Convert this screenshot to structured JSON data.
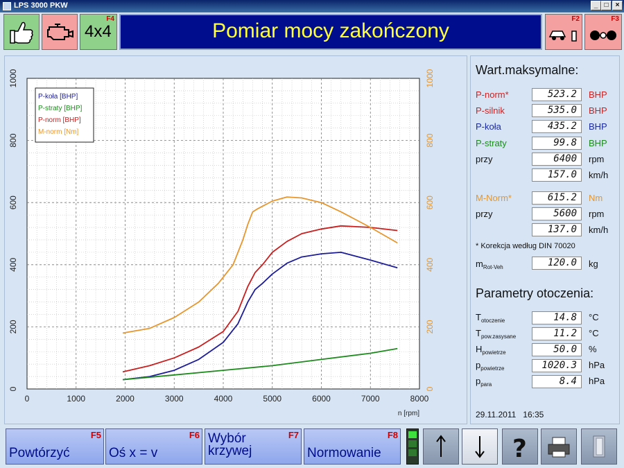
{
  "window": {
    "title": "LPS 3000 PKW"
  },
  "toolbar": {
    "status_title": "Pomiar mocy zakończony",
    "mode_4x4_label": "4x4",
    "mode_4x4_key": "F4",
    "lift_key": "F2",
    "brake_key": "F3"
  },
  "chart_data": {
    "type": "line",
    "xlabel": "n [rpm]",
    "xlim": [
      0,
      8000
    ],
    "ylim_left": [
      0,
      1000
    ],
    "ylim_right": [
      0,
      1000
    ],
    "x_ticks": [
      "0",
      "1000",
      "2000",
      "3000",
      "4000",
      "5000",
      "6000",
      "7000",
      "8000"
    ],
    "y_ticks_left": [
      "0",
      "200",
      "400",
      "600",
      "800",
      "1000"
    ],
    "y_ticks_right": [
      "0",
      "200",
      "400",
      "600",
      "800",
      "1000"
    ],
    "grid": true,
    "legend_position": "top-left",
    "series": [
      {
        "name": "P-koła [BHP]",
        "color": "#1c1c96",
        "axis": "left",
        "x": [
          1950,
          2500,
          3000,
          3500,
          4000,
          4300,
          4500,
          4650,
          4800,
          5000,
          5300,
          5600,
          6000,
          6400,
          7000,
          7550
        ],
        "y": [
          30,
          40,
          60,
          95,
          150,
          210,
          280,
          320,
          340,
          370,
          405,
          425,
          435,
          440,
          415,
          390
        ]
      },
      {
        "name": "P-straty [BHP]",
        "color": "#1e8a1e",
        "axis": "left",
        "x": [
          1950,
          3000,
          4000,
          5000,
          6000,
          7000,
          7550
        ],
        "y": [
          30,
          45,
          60,
          75,
          95,
          115,
          130
        ]
      },
      {
        "name": "P-norm [BHP]",
        "color": "#c81e1e",
        "axis": "left",
        "x": [
          1950,
          2500,
          3000,
          3500,
          4000,
          4300,
          4500,
          4650,
          4800,
          5000,
          5300,
          5600,
          6000,
          6400,
          7000,
          7550
        ],
        "y": [
          55,
          75,
          100,
          135,
          185,
          250,
          330,
          375,
          400,
          440,
          475,
          500,
          515,
          525,
          520,
          510
        ]
      },
      {
        "name": "M-norm [Nm]",
        "color": "#e6962d",
        "axis": "right",
        "x": [
          1950,
          2500,
          3000,
          3500,
          3900,
          4200,
          4400,
          4500,
          4600,
          4700,
          5000,
          5300,
          5600,
          6000,
          6400,
          7000,
          7550
        ],
        "y": [
          180,
          195,
          230,
          280,
          340,
          400,
          480,
          530,
          570,
          580,
          605,
          618,
          615,
          600,
          570,
          520,
          470
        ]
      }
    ]
  },
  "max_values": {
    "heading": "Wart.maksymalne:",
    "rows": [
      {
        "label": "P-norm*",
        "value": "523.2",
        "unit": "BHP",
        "color": "#cc2222"
      },
      {
        "label": "P-silnik",
        "value": "535.0",
        "unit": "BHP",
        "color": "#cc2222"
      },
      {
        "label": "P-koła",
        "value": "435.2",
        "unit": "BHP",
        "color": "#1c2aa0"
      },
      {
        "label": "P-straty",
        "value": "99.8",
        "unit": "BHP",
        "color": "#1e8a1e"
      },
      {
        "label": "przy",
        "value": "6400",
        "unit": "rpm",
        "color": "#111111"
      },
      {
        "label": "",
        "value": "157.0",
        "unit": "km/h",
        "color": "#111111"
      },
      {
        "label": "M-Norm*",
        "value": "615.2",
        "unit": "Nm",
        "color": "#e6962d"
      },
      {
        "label": "przy",
        "value": "5600",
        "unit": "rpm",
        "color": "#111111"
      },
      {
        "label": "",
        "value": "137.0",
        "unit": "km/h",
        "color": "#111111"
      }
    ],
    "correction_note": "* Korekcja według DIN 70020",
    "mass": {
      "symbol": "m",
      "sub": "Rot-Veh",
      "value": "120.0",
      "unit": "kg"
    }
  },
  "ambient": {
    "heading": "Parametry otoczenia:",
    "rows": [
      {
        "symbol": "T",
        "sub": "otoczenie",
        "value": "14.8",
        "unit": "°C"
      },
      {
        "symbol": "T",
        "sub": "pow.zasysane",
        "value": "11.2",
        "unit": "°C"
      },
      {
        "symbol": "H",
        "sub": "powietrze",
        "value": "50.0",
        "unit": "%"
      },
      {
        "symbol": "p",
        "sub": "powietrze",
        "value": "1020.3",
        "unit": "hPa"
      },
      {
        "symbol": "p",
        "sub": "para",
        "value": "8.4",
        "unit": "hPa"
      }
    ]
  },
  "timestamp": "29.11.2011   16:35",
  "bottom": {
    "repeat": {
      "label": "Powtórzyć",
      "key": "F5"
    },
    "axis": {
      "label": "Oś x = v",
      "key": "F6"
    },
    "curve_line1": "Wybór",
    "curve_line2": "krzywej",
    "curve_key": "F7",
    "norm": {
      "label": "Normowanie",
      "key": "F8"
    }
  }
}
